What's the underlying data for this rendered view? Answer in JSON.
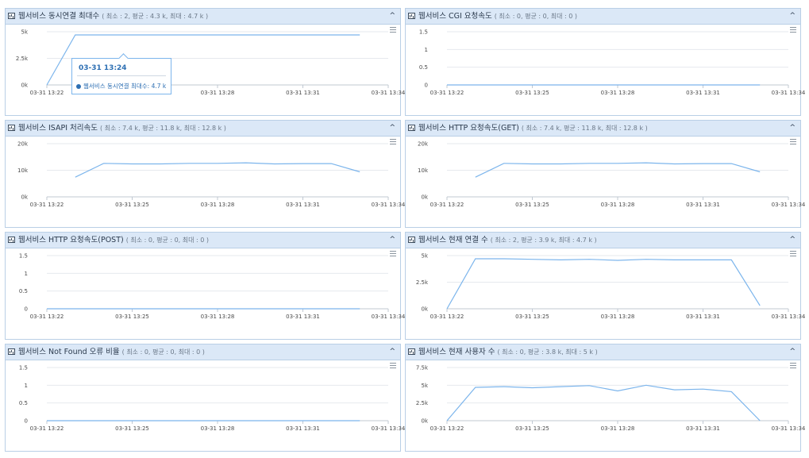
{
  "colors": {
    "line": "#7cb5ec",
    "header_bg": "#dbe8f7",
    "border": "#b9cfe6",
    "tooltip_text": "#2d6fb3"
  },
  "icons": {
    "header": "chart-icon",
    "collapse": "chevron-up-icon",
    "menu": "hamburger-menu-icon"
  },
  "panels": [
    {
      "title": "웹서비스 동시연결 최대수",
      "stats": "( 최소 : 2, 평균 : 4.3 k, 최대 : 4.7 k )",
      "collapse": "^"
    },
    {
      "title": "웹서비스 CGI 요청속도",
      "stats": "( 최소 : 0, 평균 : 0, 최대 : 0 )",
      "collapse": "^"
    },
    {
      "title": "웹서비스 ISAPI 처리속도",
      "stats": "( 최소 : 7.4 k, 평균 : 11.8 k, 최대 : 12.8 k )",
      "collapse": "^"
    },
    {
      "title": "웹서비스 HTTP 요청속도(GET)",
      "stats": "( 최소 : 7.4 k, 평균 : 11.8 k, 최대 : 12.8 k )",
      "collapse": "^"
    },
    {
      "title": "웹서비스 HTTP 요청속도(POST)",
      "stats": "( 최소 : 0, 평균 : 0, 최대 : 0 )",
      "collapse": "^"
    },
    {
      "title": "웹서비스 현재 연결 수",
      "stats": "( 최소 : 2, 평균 : 3.9 k, 최대 : 4.7 k )",
      "collapse": "^"
    },
    {
      "title": "웹서비스 Not Found 오류 비율",
      "stats": "( 최소 : 0, 평균 : 0, 최대 : 0 )",
      "collapse": "^"
    },
    {
      "title": "웹서비스 현재 사용자 수",
      "stats": "( 최소 : 0, 평균 : 3.8 k, 최대 : 5 k )",
      "collapse": "^"
    }
  ],
  "tooltip": {
    "time": "03-31 13:24",
    "series": "웹서비스 동시연결 최대수",
    "value": "4.7 k",
    "separator": ": "
  },
  "chart_data": [
    {
      "type": "line",
      "x": [
        "03-31 13:22",
        "03-31 13:23",
        "03-31 13:24",
        "03-31 13:25",
        "03-31 13:26",
        "03-31 13:27",
        "03-31 13:28",
        "03-31 13:29",
        "03-31 13:30",
        "03-31 13:31",
        "03-31 13:32",
        "03-31 13:33"
      ],
      "x_ticks": [
        "03-31 13:22",
        "03-31 13:25",
        "03-31 13:28",
        "03-31 13:31",
        "03-31 13:34"
      ],
      "y_ticks": [
        "0k",
        "2.5k",
        "5k"
      ],
      "ylim": [
        0,
        5000
      ],
      "values": [
        2,
        4700,
        4700,
        4700,
        4700,
        4700,
        4700,
        4700,
        4700,
        4700,
        4700,
        4700
      ]
    },
    {
      "type": "line",
      "x": [
        "03-31 13:22",
        "03-31 13:23",
        "03-31 13:24",
        "03-31 13:25",
        "03-31 13:26",
        "03-31 13:27",
        "03-31 13:28",
        "03-31 13:29",
        "03-31 13:30",
        "03-31 13:31",
        "03-31 13:32",
        "03-31 13:33"
      ],
      "x_ticks": [
        "03-31 13:22",
        "03-31 13:25",
        "03-31 13:28",
        "03-31 13:31",
        "03-31 13:34"
      ],
      "y_ticks": [
        "0",
        "0.5",
        "1",
        "1.5"
      ],
      "ylim": [
        0,
        1.5
      ],
      "values": [
        0,
        0,
        0,
        0,
        0,
        0,
        0,
        0,
        0,
        0,
        0,
        0
      ]
    },
    {
      "type": "line",
      "x": [
        "03-31 13:23",
        "03-31 13:24",
        "03-31 13:25",
        "03-31 13:26",
        "03-31 13:27",
        "03-31 13:28",
        "03-31 13:29",
        "03-31 13:30",
        "03-31 13:31",
        "03-31 13:32",
        "03-31 13:33"
      ],
      "x_ticks": [
        "03-31 13:22",
        "03-31 13:25",
        "03-31 13:28",
        "03-31 13:31",
        "03-31 13:34"
      ],
      "y_ticks": [
        "0k",
        "10k",
        "20k"
      ],
      "ylim": [
        0,
        20000
      ],
      "values": [
        7400,
        12600,
        12400,
        12400,
        12600,
        12600,
        12800,
        12400,
        12500,
        12500,
        9400
      ]
    },
    {
      "type": "line",
      "x": [
        "03-31 13:23",
        "03-31 13:24",
        "03-31 13:25",
        "03-31 13:26",
        "03-31 13:27",
        "03-31 13:28",
        "03-31 13:29",
        "03-31 13:30",
        "03-31 13:31",
        "03-31 13:32",
        "03-31 13:33"
      ],
      "x_ticks": [
        "03-31 13:22",
        "03-31 13:25",
        "03-31 13:28",
        "03-31 13:31",
        "03-31 13:34"
      ],
      "y_ticks": [
        "0k",
        "10k",
        "20k"
      ],
      "ylim": [
        0,
        20000
      ],
      "values": [
        7400,
        12600,
        12400,
        12400,
        12600,
        12600,
        12800,
        12400,
        12500,
        12500,
        9400
      ]
    },
    {
      "type": "line",
      "x": [
        "03-31 13:22",
        "03-31 13:23",
        "03-31 13:24",
        "03-31 13:25",
        "03-31 13:26",
        "03-31 13:27",
        "03-31 13:28",
        "03-31 13:29",
        "03-31 13:30",
        "03-31 13:31",
        "03-31 13:32",
        "03-31 13:33"
      ],
      "x_ticks": [
        "03-31 13:22",
        "03-31 13:25",
        "03-31 13:28",
        "03-31 13:31",
        "03-31 13:34"
      ],
      "y_ticks": [
        "0",
        "0.5",
        "1",
        "1.5"
      ],
      "ylim": [
        0,
        1.5
      ],
      "values": [
        0,
        0,
        0,
        0,
        0,
        0,
        0,
        0,
        0,
        0,
        0,
        0
      ]
    },
    {
      "type": "line",
      "x": [
        "03-31 13:22",
        "03-31 13:23",
        "03-31 13:24",
        "03-31 13:25",
        "03-31 13:26",
        "03-31 13:27",
        "03-31 13:28",
        "03-31 13:29",
        "03-31 13:30",
        "03-31 13:31",
        "03-31 13:32",
        "03-31 13:33"
      ],
      "x_ticks": [
        "03-31 13:22",
        "03-31 13:25",
        "03-31 13:28",
        "03-31 13:31",
        "03-31 13:34"
      ],
      "y_ticks": [
        "0k",
        "2.5k",
        "5k"
      ],
      "ylim": [
        0,
        5000
      ],
      "values": [
        2,
        4700,
        4700,
        4650,
        4600,
        4650,
        4550,
        4650,
        4600,
        4600,
        4600,
        300
      ]
    },
    {
      "type": "line",
      "x": [
        "03-31 13:22",
        "03-31 13:23",
        "03-31 13:24",
        "03-31 13:25",
        "03-31 13:26",
        "03-31 13:27",
        "03-31 13:28",
        "03-31 13:29",
        "03-31 13:30",
        "03-31 13:31",
        "03-31 13:32",
        "03-31 13:33"
      ],
      "x_ticks": [
        "03-31 13:22",
        "03-31 13:25",
        "03-31 13:28",
        "03-31 13:31",
        "03-31 13:34"
      ],
      "y_ticks": [
        "0",
        "0.5",
        "1",
        "1.5"
      ],
      "ylim": [
        0,
        1.5
      ],
      "values": [
        0,
        0,
        0,
        0,
        0,
        0,
        0,
        0,
        0,
        0,
        0,
        0
      ]
    },
    {
      "type": "line",
      "x": [
        "03-31 13:22",
        "03-31 13:23",
        "03-31 13:24",
        "03-31 13:25",
        "03-31 13:26",
        "03-31 13:27",
        "03-31 13:28",
        "03-31 13:29",
        "03-31 13:30",
        "03-31 13:31",
        "03-31 13:32",
        "03-31 13:33"
      ],
      "x_ticks": [
        "03-31 13:22",
        "03-31 13:25",
        "03-31 13:28",
        "03-31 13:31",
        "03-31 13:34"
      ],
      "y_ticks": [
        "0k",
        "2.5k",
        "5k",
        "7.5k"
      ],
      "ylim": [
        0,
        7500
      ],
      "values": [
        0,
        4700,
        4800,
        4650,
        4800,
        4950,
        4200,
        5000,
        4350,
        4450,
        4100,
        0
      ]
    }
  ]
}
